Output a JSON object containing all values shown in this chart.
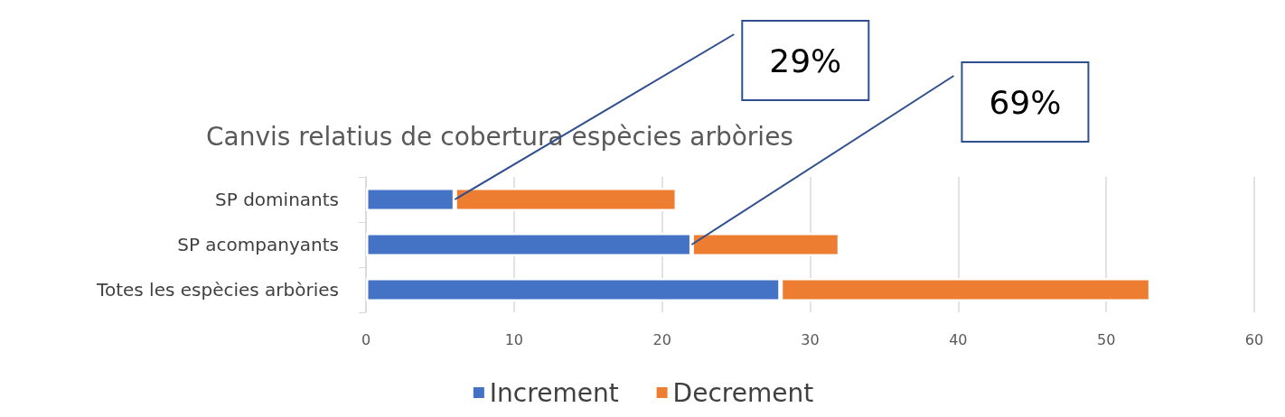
{
  "chart_data": {
    "type": "bar",
    "orientation": "horizontal",
    "stacked": true,
    "title": "Canvis relatius de cobertura espècies arbòries",
    "categories": [
      "SP dominants",
      "SP acompanyants",
      "Totes les espècies arbòries"
    ],
    "series": [
      {
        "name": "Increment",
        "color": "#4472c4",
        "values": [
          6,
          22,
          28
        ]
      },
      {
        "name": "Decrement",
        "color": "#ed7d31",
        "values": [
          15,
          10,
          25
        ]
      }
    ],
    "xlim": [
      0,
      60
    ],
    "xticks": [
      0,
      10,
      20,
      30,
      40,
      50,
      60
    ],
    "grid": "x",
    "legend": "bottom",
    "annotations": [
      {
        "text": "29%",
        "x": 6,
        "y": "SP dominants"
      },
      {
        "text": "69%",
        "x": 22,
        "y": "SP acompanyants"
      }
    ]
  }
}
